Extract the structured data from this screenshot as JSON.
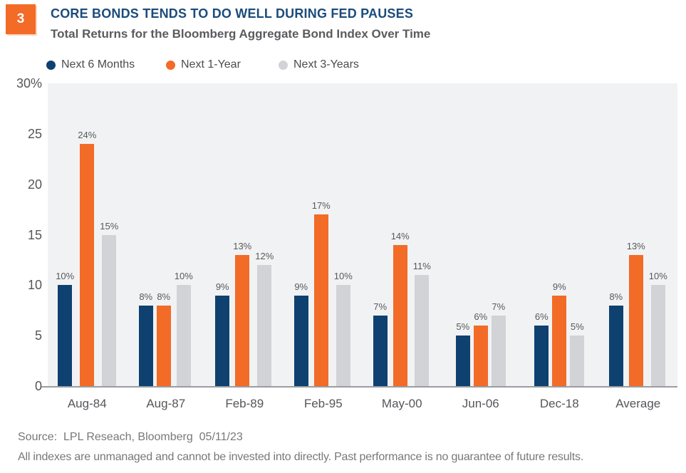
{
  "figure_number": "3",
  "header": {
    "title": "CORE BONDS TENDS TO DO WELL DURING FED PAUSES",
    "subtitle": "Total Returns for the Bloomberg Aggregate Bond Index Over Time"
  },
  "colors": {
    "navy": "#0e4170",
    "orange": "#f26b27",
    "light_gray": "#d1d3d6",
    "plot_background": "#f1f2f3",
    "axis_line": "#9b9da0",
    "title_blue": "#1b4c7c",
    "badge_orange": "#f26b27"
  },
  "chart_data": {
    "type": "bar",
    "title": "CORE BONDS TENDS TO DO WELL DURING FED PAUSES",
    "subtitle": "Total Returns for the Bloomberg Aggregate Bond Index Over Time",
    "categories": [
      "Aug-84",
      "Aug-87",
      "Feb-89",
      "Feb-95",
      "May-00",
      "Jun-06",
      "Dec-18",
      "Average"
    ],
    "series": [
      {
        "name": "Next 6 Months",
        "color": "#0e4170",
        "values": [
          10,
          8,
          9,
          9,
          7,
          5,
          6,
          8
        ]
      },
      {
        "name": "Next 1-Year",
        "color": "#f26b27",
        "values": [
          24,
          8,
          13,
          17,
          14,
          6,
          9,
          13
        ]
      },
      {
        "name": "Next 3-Years",
        "color": "#d1d3d6",
        "values": [
          15,
          10,
          12,
          10,
          11,
          7,
          5,
          10
        ]
      }
    ],
    "value_suffix": "%",
    "data_labels": true,
    "xlabel": "",
    "ylabel": "",
    "ylim": [
      0,
      30
    ],
    "ytick_values": [
      30,
      25,
      20,
      15,
      10,
      5,
      0
    ],
    "ytick_labels": [
      "30%",
      "25",
      "20",
      "15",
      "10",
      "5",
      "0"
    ],
    "grid": false,
    "legend_position": "top"
  },
  "footer": {
    "source": "Source:  LPL Reseach, Bloomberg  05/11/23",
    "disclaimer": "All indexes are unmanaged and cannot be invested into directly. Past performance is no guarantee of future results."
  }
}
